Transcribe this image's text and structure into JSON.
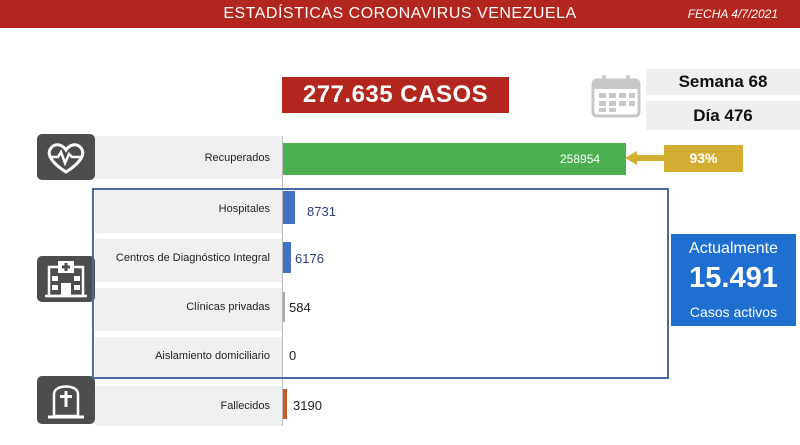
{
  "header": {
    "title": "ESTADÍSTICAS CORONAVIRUS VENEZUELA",
    "date": "FECHA 4/7/2021"
  },
  "summary": {
    "total_cases": "277.635 CASOS",
    "week": "Semana 68",
    "day": "Día 476",
    "recovered_pct": "93%",
    "active_line1": "Actualmente",
    "active_count": "15.491",
    "active_line2": "Casos activos"
  },
  "icons": {
    "calendar": "calendar-icon",
    "recovered": "heart-pulse-icon",
    "hospital": "hospital-icon",
    "deceased": "tombstone-icon"
  },
  "colors": {
    "header": "#b3261e",
    "recovered": "#4caf50",
    "hospital": "#4472c4",
    "deceased": "#c55a2b",
    "active_box": "#1f6fd1",
    "pct_badge": "#d4ad33"
  },
  "chart_data": {
    "type": "bar",
    "orientation": "horizontal",
    "categories": [
      "Recuperados",
      "Hospitales",
      "Centros de Diagnóstico Integral",
      "Clínicas privadas",
      "Aislamiento domiciliario",
      "Fallecidos"
    ],
    "values": [
      258954,
      8731,
      6176,
      584,
      0,
      3190
    ],
    "value_labels": [
      "258954",
      "8731",
      "6176",
      "584",
      "0",
      "3190"
    ],
    "xlim": [
      0,
      258954
    ]
  }
}
